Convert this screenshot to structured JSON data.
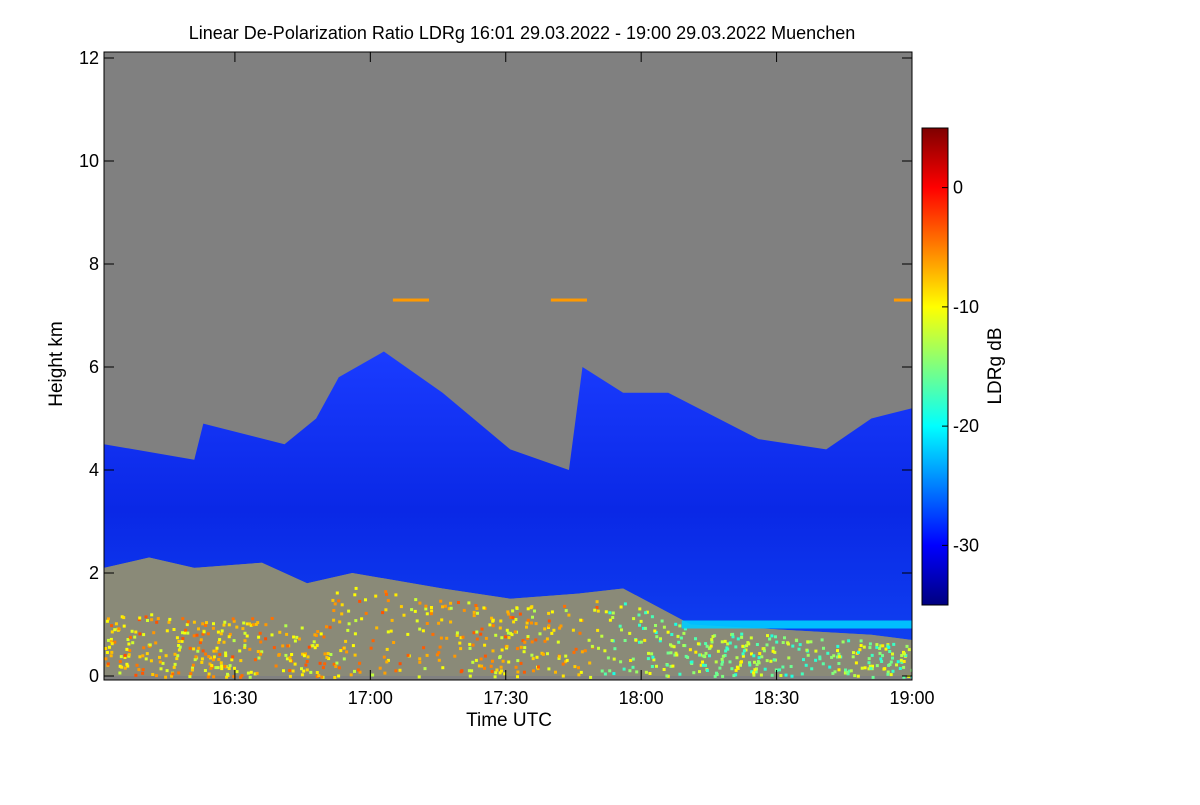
{
  "chart_data": {
    "type": "heatmap",
    "title": "Linear De-Polarization Ratio LDRg   16:01 29.03.2022 - 19:00 29.03.2022 Muenchen",
    "xlabel": "Time UTC",
    "ylabel": "Height km",
    "x_range": [
      "16:01",
      "19:00"
    ],
    "y_range": [
      0,
      12
    ],
    "x_ticks": [
      {
        "label": "16:30",
        "minutes": 29
      },
      {
        "label": "17:00",
        "minutes": 59
      },
      {
        "label": "17:30",
        "minutes": 89
      },
      {
        "label": "18:00",
        "minutes": 119
      },
      {
        "label": "18:30",
        "minutes": 149
      },
      {
        "label": "19:00",
        "minutes": 179
      }
    ],
    "y_ticks": [
      0,
      2,
      4,
      6,
      8,
      10,
      12
    ],
    "colorbar": {
      "label": "LDRg dB",
      "range": [
        -35,
        5
      ],
      "ticks": [
        0,
        -10,
        -20,
        -30
      ],
      "colormap": [
        "#00007f",
        "#0000ff",
        "#007fff",
        "#00ffff",
        "#7fff7f",
        "#ffff00",
        "#ff7f00",
        "#ff0000",
        "#7f0000"
      ]
    },
    "no_data_color": "#808080",
    "cloud_top_km": [
      [
        0,
        4.5
      ],
      [
        20,
        4.2
      ],
      [
        22,
        4.9
      ],
      [
        40,
        4.5
      ],
      [
        47,
        5.0
      ],
      [
        52,
        5.8
      ],
      [
        62,
        6.3
      ],
      [
        75,
        5.5
      ],
      [
        90,
        4.4
      ],
      [
        103,
        4.0
      ],
      [
        106,
        6.0
      ],
      [
        115,
        5.5
      ],
      [
        125,
        5.5
      ],
      [
        145,
        4.6
      ],
      [
        160,
        4.4
      ],
      [
        170,
        5.0
      ],
      [
        179,
        5.2
      ]
    ],
    "cloud_base_km": [
      [
        0,
        2.1
      ],
      [
        10,
        2.3
      ],
      [
        20,
        2.1
      ],
      [
        35,
        2.2
      ],
      [
        45,
        1.8
      ],
      [
        55,
        2.0
      ],
      [
        75,
        1.7
      ],
      [
        90,
        1.5
      ],
      [
        105,
        1.6
      ],
      [
        115,
        1.7
      ],
      [
        130,
        1.0
      ],
      [
        150,
        0.9
      ],
      [
        170,
        0.8
      ],
      [
        179,
        0.7
      ]
    ],
    "cloud_ldr_db": -30,
    "boundary_layer_ldr_db": -10,
    "aerosol_layer_height_km": 1.0,
    "aerosol_layer_ldr_db": -22,
    "thin_layer_height_km": 7.3,
    "thin_layer_ldr_db": -6
  }
}
